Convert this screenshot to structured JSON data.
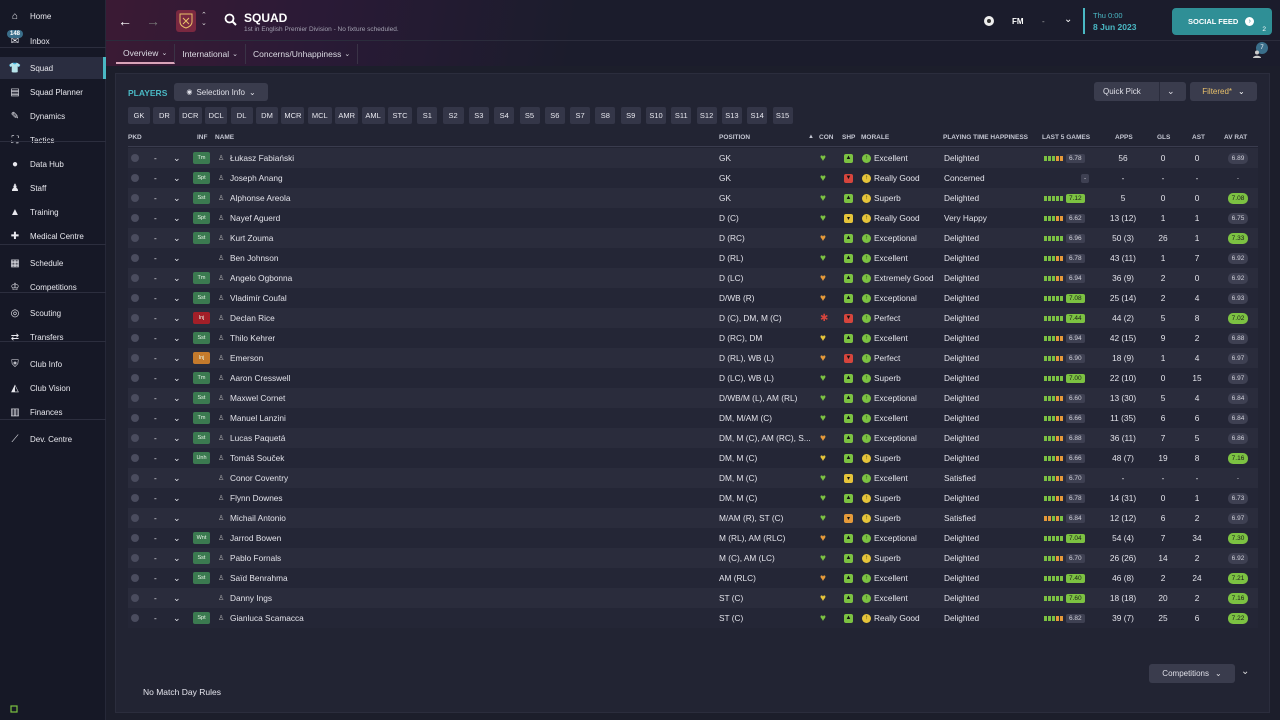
{
  "sidebar": {
    "inbox_count": "148",
    "items": [
      {
        "label": "Home",
        "icon": "home-icon"
      },
      {
        "label": "Inbox",
        "icon": "inbox-icon"
      },
      {
        "label": "Squad",
        "icon": "shirt-icon"
      },
      {
        "label": "Squad Planner",
        "icon": "clipboard-icon"
      },
      {
        "label": "Dynamics",
        "icon": "chat-icon"
      },
      {
        "label": "Tactics",
        "icon": "tactics-icon"
      },
      {
        "label": "Data Hub",
        "icon": "data-hub-icon"
      },
      {
        "label": "Staff",
        "icon": "staff-icon"
      },
      {
        "label": "Training",
        "icon": "training-icon"
      },
      {
        "label": "Medical Centre",
        "icon": "medical-icon"
      },
      {
        "label": "Schedule",
        "icon": "calendar-icon"
      },
      {
        "label": "Competitions",
        "icon": "trophy-icon"
      },
      {
        "label": "Scouting",
        "icon": "scouting-icon"
      },
      {
        "label": "Transfers",
        "icon": "transfers-icon"
      },
      {
        "label": "Club Info",
        "icon": "shield-icon"
      },
      {
        "label": "Club Vision",
        "icon": "vision-icon"
      },
      {
        "label": "Finances",
        "icon": "finances-icon"
      },
      {
        "label": "Dev. Centre",
        "icon": "dev-centre-icon"
      }
    ]
  },
  "header": {
    "title": "SQUAD",
    "subtitle": "1st in English Premier Division - No fixture scheduled.",
    "fm_label": "FM",
    "fm_dash": "-",
    "date_line1": "Thu 0:00",
    "date_line2": "8 Jun 2023",
    "social_feed": "SOCIAL FEED",
    "social_count": "2",
    "badge_count": "7",
    "tabs": [
      "Overview",
      "International",
      "Concerns/Unhappiness"
    ]
  },
  "toolbar": {
    "players_label": "PLAYERS",
    "selection_info": "Selection Info",
    "quick_pick": "Quick Pick",
    "filtered": "Filtered*"
  },
  "positions": [
    "GK",
    "DR",
    "DCR",
    "DCL",
    "DL",
    "DM",
    "MCR",
    "MCL",
    "AMR",
    "AML",
    "STC",
    "S1",
    "S2",
    "S3",
    "S4",
    "S5",
    "S6",
    "S7",
    "S8",
    "S9",
    "S10",
    "S11",
    "S12",
    "S13",
    "S14",
    "S15"
  ],
  "columns": {
    "pkd": "PKD",
    "inf": "INF",
    "name": "NAME",
    "position": "POSITION",
    "con": "CON",
    "shp": "SHP",
    "morale": "MORALE",
    "happiness": "PLAYING TIME HAPPINESS",
    "last5": "LAST 5 GAMES",
    "apps": "APPS",
    "gls": "GLS",
    "ast": "AST",
    "avrat": "AV RAT"
  },
  "colors": {
    "accent": "#4ab8c4",
    "green": "#7cc242",
    "yellow": "#e5c43a",
    "orange": "#e59a3a",
    "red": "#d6453d"
  },
  "players": [
    {
      "dash": "-",
      "inf": "Tm",
      "inf_color": "green",
      "name": "Łukasz Fabiański",
      "position": "GK",
      "con": "green",
      "shp": "green",
      "mood": "green",
      "morale": "Excellent",
      "happiness": "Delighted",
      "l5": [
        "g",
        "g",
        "g",
        "o",
        "o"
      ],
      "l5val": "6.78",
      "l5hl": false,
      "apps": "56",
      "gls": "0",
      "ast": "0",
      "avrat": "6.89",
      "avhl": false
    },
    {
      "dash": "-",
      "inf": "Spt",
      "inf_color": "green",
      "name": "Joseph Anang",
      "position": "GK",
      "con": "green",
      "shp": "red",
      "mood": "yellow",
      "morale": "Really Good",
      "happiness": "Concerned",
      "l5": [],
      "l5val": "-",
      "l5hl": false,
      "apps": "-",
      "gls": "-",
      "ast": "-",
      "avrat": "-",
      "avhl": false
    },
    {
      "dash": "-",
      "inf": "Sst",
      "inf_color": "green",
      "name": "Alphonse Areola",
      "position": "GK",
      "con": "green",
      "shp": "green",
      "mood": "yellow",
      "morale": "Superb",
      "happiness": "Delighted",
      "l5": [
        "g",
        "g",
        "g",
        "g",
        "g"
      ],
      "l5val": "7.12",
      "l5hl": true,
      "apps": "5",
      "gls": "0",
      "ast": "0",
      "avrat": "7.08",
      "avhl": true
    },
    {
      "dash": "-",
      "inf": "Spt",
      "inf_color": "green",
      "name": "Nayef Aguerd",
      "position": "D (C)",
      "con": "green",
      "shp": "yellow",
      "mood": "yellow",
      "morale": "Really Good",
      "happiness": "Very Happy",
      "l5": [
        "g",
        "g",
        "g",
        "o",
        "o"
      ],
      "l5val": "6.62",
      "l5hl": false,
      "apps": "13 (12)",
      "gls": "1",
      "ast": "1",
      "avrat": "6.75",
      "avhl": false
    },
    {
      "dash": "-",
      "inf": "Sst",
      "inf_color": "green",
      "name": "Kurt Zouma",
      "position": "D (RC)",
      "con": "orange",
      "shp": "green",
      "mood": "green",
      "morale": "Exceptional",
      "happiness": "Delighted",
      "l5": [
        "g",
        "g",
        "g",
        "g",
        "g"
      ],
      "l5val": "6.96",
      "l5hl": false,
      "apps": "50 (3)",
      "gls": "26",
      "ast": "1",
      "avrat": "7.33",
      "avhl": true
    },
    {
      "dash": "-",
      "inf": "",
      "inf_color": "",
      "name": "Ben Johnson",
      "position": "D (RL)",
      "con": "green",
      "shp": "green",
      "mood": "green",
      "morale": "Excellent",
      "happiness": "Delighted",
      "l5": [
        "g",
        "g",
        "g",
        "o",
        "o"
      ],
      "l5val": "6.78",
      "l5hl": false,
      "apps": "43 (11)",
      "gls": "1",
      "ast": "7",
      "avrat": "6.92",
      "avhl": false
    },
    {
      "dash": "-",
      "inf": "Tm",
      "inf_color": "green",
      "name": "Angelo Ogbonna",
      "position": "D (LC)",
      "con": "orange",
      "shp": "green",
      "mood": "green",
      "morale": "Extremely Good",
      "happiness": "Delighted",
      "l5": [
        "g",
        "g",
        "g",
        "o",
        "o"
      ],
      "l5val": "6.94",
      "l5hl": false,
      "apps": "36 (9)",
      "gls": "2",
      "ast": "0",
      "avrat": "6.92",
      "avhl": false
    },
    {
      "dash": "-",
      "inf": "Sst",
      "inf_color": "green",
      "name": "Vladimír Coufal",
      "position": "D/WB (R)",
      "con": "orange",
      "shp": "green",
      "mood": "green",
      "morale": "Exceptional",
      "happiness": "Delighted",
      "l5": [
        "g",
        "g",
        "g",
        "g",
        "g"
      ],
      "l5val": "7.08",
      "l5hl": true,
      "apps": "25 (14)",
      "gls": "2",
      "ast": "4",
      "avrat": "6.93",
      "avhl": false
    },
    {
      "dash": "-",
      "inf": "Inj",
      "inf_color": "red",
      "name": "Declan Rice",
      "position": "D (C), DM, M (C)",
      "con": "red",
      "shp": "red",
      "mood": "green",
      "morale": "Perfect",
      "happiness": "Delighted",
      "l5": [
        "g",
        "g",
        "g",
        "g",
        "g"
      ],
      "l5val": "7.44",
      "l5hl": true,
      "apps": "44 (2)",
      "gls": "5",
      "ast": "8",
      "avrat": "7.02",
      "avhl": true
    },
    {
      "dash": "-",
      "inf": "Sst",
      "inf_color": "green",
      "name": "Thilo Kehrer",
      "position": "D (RC), DM",
      "con": "yellow",
      "shp": "green",
      "mood": "green",
      "morale": "Excellent",
      "happiness": "Delighted",
      "l5": [
        "g",
        "g",
        "g",
        "o",
        "o"
      ],
      "l5val": "6.94",
      "l5hl": false,
      "apps": "42 (15)",
      "gls": "9",
      "ast": "2",
      "avrat": "6.88",
      "avhl": false
    },
    {
      "dash": "-",
      "inf": "Inj",
      "inf_color": "orange",
      "name": "Emerson",
      "position": "D (RL), WB (L)",
      "con": "orange",
      "shp": "red",
      "mood": "green",
      "morale": "Perfect",
      "happiness": "Delighted",
      "l5": [
        "g",
        "g",
        "g",
        "o",
        "o"
      ],
      "l5val": "6.90",
      "l5hl": false,
      "apps": "18 (9)",
      "gls": "1",
      "ast": "4",
      "avrat": "6.97",
      "avhl": false
    },
    {
      "dash": "-",
      "inf": "Tm",
      "inf_color": "green",
      "name": "Aaron Cresswell",
      "position": "D (LC), WB (L)",
      "con": "green",
      "shp": "green",
      "mood": "green",
      "morale": "Superb",
      "happiness": "Delighted",
      "l5": [
        "g",
        "g",
        "g",
        "g",
        "g"
      ],
      "l5val": "7.00",
      "l5hl": true,
      "apps": "22 (10)",
      "gls": "0",
      "ast": "15",
      "avrat": "6.97",
      "avhl": false
    },
    {
      "dash": "-",
      "inf": "Sst",
      "inf_color": "green",
      "name": "Maxwel Cornet",
      "position": "D/WB/M (L), AM (RL)",
      "con": "green",
      "shp": "green",
      "mood": "green",
      "morale": "Exceptional",
      "happiness": "Delighted",
      "l5": [
        "g",
        "g",
        "g",
        "o",
        "o"
      ],
      "l5val": "6.60",
      "l5hl": false,
      "apps": "13 (30)",
      "gls": "5",
      "ast": "4",
      "avrat": "6.84",
      "avhl": false
    },
    {
      "dash": "-",
      "inf": "Tm",
      "inf_color": "green",
      "name": "Manuel Lanzini",
      "position": "DM, M/AM (C)",
      "con": "green",
      "shp": "green",
      "mood": "green",
      "morale": "Excellent",
      "happiness": "Delighted",
      "l5": [
        "g",
        "g",
        "g",
        "o",
        "o"
      ],
      "l5val": "6.66",
      "l5hl": false,
      "apps": "11 (35)",
      "gls": "6",
      "ast": "6",
      "avrat": "6.84",
      "avhl": false
    },
    {
      "dash": "-",
      "inf": "Sst",
      "inf_color": "green",
      "name": "Lucas Paquetá",
      "position": "DM, M (C), AM (RC), S...",
      "con": "orange",
      "shp": "green",
      "mood": "green",
      "morale": "Exceptional",
      "happiness": "Delighted",
      "l5": [
        "g",
        "g",
        "g",
        "o",
        "o"
      ],
      "l5val": "6.88",
      "l5hl": false,
      "apps": "36 (11)",
      "gls": "7",
      "ast": "5",
      "avrat": "6.86",
      "avhl": false
    },
    {
      "dash": "-",
      "inf": "Unh",
      "inf_color": "green",
      "name": "Tomáš Souček",
      "position": "DM, M (C)",
      "con": "yellow",
      "shp": "green",
      "mood": "yellow",
      "morale": "Superb",
      "happiness": "Delighted",
      "l5": [
        "g",
        "g",
        "g",
        "o",
        "o"
      ],
      "l5val": "6.66",
      "l5hl": false,
      "apps": "48 (7)",
      "gls": "19",
      "ast": "8",
      "avrat": "7.16",
      "avhl": true
    },
    {
      "dash": "-",
      "inf": "",
      "inf_color": "",
      "name": "Conor Coventry",
      "position": "DM, M (C)",
      "con": "green",
      "shp": "yellow",
      "mood": "green",
      "morale": "Excellent",
      "happiness": "Satisfied",
      "l5": [
        "g",
        "g",
        "g",
        "o",
        "o"
      ],
      "l5val": "6.70",
      "l5hl": false,
      "apps": "-",
      "gls": "-",
      "ast": "-",
      "avrat": "-",
      "avhl": false
    },
    {
      "dash": "-",
      "inf": "",
      "inf_color": "",
      "name": "Flynn Downes",
      "position": "DM, M (C)",
      "con": "green",
      "shp": "green",
      "mood": "yellow",
      "morale": "Superb",
      "happiness": "Delighted",
      "l5": [
        "g",
        "g",
        "g",
        "o",
        "o"
      ],
      "l5val": "6.78",
      "l5hl": false,
      "apps": "14 (31)",
      "gls": "0",
      "ast": "1",
      "avrat": "6.73",
      "avhl": false
    },
    {
      "dash": "-",
      "inf": "",
      "inf_color": "",
      "name": "Michail Antonio",
      "position": "M/AM (R), ST (C)",
      "con": "green",
      "shp": "orange",
      "mood": "yellow",
      "morale": "Superb",
      "happiness": "Satisfied",
      "l5": [
        "o",
        "o",
        "g",
        "o",
        "g"
      ],
      "l5val": "6.84",
      "l5hl": false,
      "apps": "12 (12)",
      "gls": "6",
      "ast": "2",
      "avrat": "6.97",
      "avhl": false
    },
    {
      "dash": "-",
      "inf": "Wnt",
      "inf_color": "green",
      "name": "Jarrod Bowen",
      "position": "M (RL), AM (RLC)",
      "con": "orange",
      "shp": "green",
      "mood": "green",
      "morale": "Exceptional",
      "happiness": "Delighted",
      "l5": [
        "g",
        "g",
        "g",
        "g",
        "g"
      ],
      "l5val": "7.04",
      "l5hl": true,
      "apps": "54 (4)",
      "gls": "7",
      "ast": "34",
      "avrat": "7.30",
      "avhl": true
    },
    {
      "dash": "-",
      "inf": "Sst",
      "inf_color": "green",
      "name": "Pablo Fornals",
      "position": "M (C), AM (LC)",
      "con": "green",
      "shp": "green",
      "mood": "yellow",
      "morale": "Superb",
      "happiness": "Delighted",
      "l5": [
        "g",
        "g",
        "g",
        "o",
        "o"
      ],
      "l5val": "6.70",
      "l5hl": false,
      "apps": "26 (26)",
      "gls": "14",
      "ast": "2",
      "avrat": "6.92",
      "avhl": false
    },
    {
      "dash": "-",
      "inf": "Sst",
      "inf_color": "green",
      "name": "Saïd Benrahma",
      "position": "AM (RLC)",
      "con": "orange",
      "shp": "green",
      "mood": "green",
      "morale": "Excellent",
      "happiness": "Delighted",
      "l5": [
        "g",
        "g",
        "g",
        "g",
        "g"
      ],
      "l5val": "7.40",
      "l5hl": true,
      "apps": "46 (8)",
      "gls": "2",
      "ast": "24",
      "avrat": "7.21",
      "avhl": true
    },
    {
      "dash": "-",
      "inf": "",
      "inf_color": "",
      "name": "Danny Ings",
      "position": "ST (C)",
      "con": "yellow",
      "shp": "green",
      "mood": "green",
      "morale": "Excellent",
      "happiness": "Delighted",
      "l5": [
        "g",
        "g",
        "g",
        "g",
        "g"
      ],
      "l5val": "7.60",
      "l5hl": true,
      "apps": "18 (18)",
      "gls": "20",
      "ast": "2",
      "avrat": "7.16",
      "avhl": true
    },
    {
      "dash": "-",
      "inf": "Spt",
      "inf_color": "green",
      "name": "Gianluca Scamacca",
      "position": "ST (C)",
      "con": "green",
      "shp": "green",
      "mood": "yellow",
      "morale": "Really Good",
      "happiness": "Delighted",
      "l5": [
        "g",
        "g",
        "g",
        "o",
        "o"
      ],
      "l5val": "6.82",
      "l5hl": false,
      "apps": "39 (7)",
      "gls": "25",
      "ast": "6",
      "avrat": "7.22",
      "avhl": true
    }
  ],
  "footer": {
    "competitions": "Competitions",
    "no_rules": "No Match Day Rules"
  }
}
